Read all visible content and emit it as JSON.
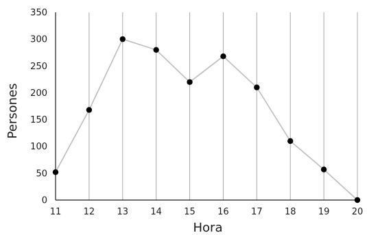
{
  "chart_data": {
    "type": "line",
    "xlabel": "Hora",
    "ylabel": "Persones",
    "x": [
      11,
      12,
      13,
      14,
      15,
      16,
      17,
      18,
      19,
      20
    ],
    "series": [
      {
        "values": [
          52,
          168,
          300,
          280,
          220,
          268,
          210,
          110,
          57,
          0
        ]
      }
    ],
    "xlim": [
      11,
      20
    ],
    "ylim": [
      0,
      350
    ],
    "yticks": [
      0,
      50,
      100,
      150,
      200,
      250,
      300,
      350
    ],
    "xticks": [
      11,
      12,
      13,
      14,
      15,
      16,
      17,
      18,
      19,
      20
    ],
    "grid": "vertical",
    "colors": {
      "line": "#bdbdbd",
      "marker": "#000000",
      "grid": "#a9a9a9",
      "axis": "#1a1a1a"
    }
  }
}
